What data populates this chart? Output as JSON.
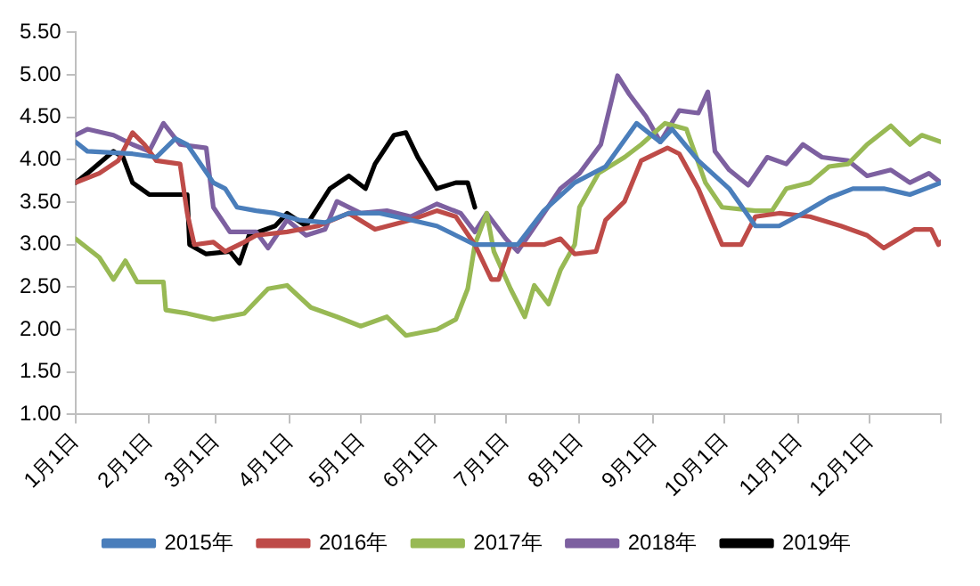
{
  "chart_data": {
    "type": "line",
    "xlim": [
      "--01-01",
      "--12-31"
    ],
    "xticks": [
      {
        "value": "--01-01",
        "label": "1月1日"
      },
      {
        "value": "--02-01",
        "label": "2月1日"
      },
      {
        "value": "--03-01",
        "label": "3月1日"
      },
      {
        "value": "--04-01",
        "label": "4月1日"
      },
      {
        "value": "--05-01",
        "label": "5月1日"
      },
      {
        "value": "--06-01",
        "label": "6月1日"
      },
      {
        "value": "--07-01",
        "label": "7月1日"
      },
      {
        "value": "--08-01",
        "label": "8月1日"
      },
      {
        "value": "--09-01",
        "label": "9月1日"
      },
      {
        "value": "--10-01",
        "label": "10月1日"
      },
      {
        "value": "--11-01",
        "label": "11月1日"
      },
      {
        "value": "--12-01",
        "label": "12月1日"
      },
      {
        "value": "--12-31",
        "label": null
      }
    ],
    "ylim": [
      1,
      5.5
    ],
    "yticks": [
      {
        "value": 1,
        "label": "1.00"
      },
      {
        "value": 1.5,
        "label": "1.50"
      },
      {
        "value": 2,
        "label": "2.00"
      },
      {
        "value": 2.5,
        "label": "2.50"
      },
      {
        "value": 3,
        "label": "3.00"
      },
      {
        "value": 3.5,
        "label": "3.50"
      },
      {
        "value": 4,
        "label": "4.00"
      },
      {
        "value": 4.5,
        "label": "4.50"
      },
      {
        "value": 5,
        "label": "5.00"
      },
      {
        "value": 5.5,
        "label": "5.50"
      }
    ],
    "grid": false,
    "legend": "bottom",
    "marker": "none",
    "line_style": "solid",
    "series": [
      {
        "name": "2015年",
        "color": "#4a7ebb",
        "x": [
          "--01-01",
          "--01-06",
          "--01-25",
          "--02-04",
          "--02-12",
          "--02-17",
          "--02-28",
          "--03-05",
          "--03-10",
          "--03-18",
          "--03-26",
          "--04-05",
          "--04-16",
          "--04-26",
          "--05-09",
          "--05-22",
          "--06-02",
          "--06-10",
          "--06-18",
          "--07-06",
          "--07-17",
          "--07-30",
          "--08-12",
          "--08-25",
          "--09-04",
          "--09-09",
          "--09-20",
          "--10-03",
          "--10-14",
          "--10-24",
          "--11-03",
          "--11-14",
          "--11-24",
          "--12-07",
          "--12-18",
          "--12-31"
        ],
        "values": [
          4.21,
          4.1,
          4.07,
          4.03,
          4.25,
          4.18,
          3.73,
          3.66,
          3.44,
          3.4,
          3.37,
          3.29,
          3.26,
          3.37,
          3.37,
          3.29,
          3.22,
          3.11,
          3.0,
          3.0,
          3.4,
          3.73,
          3.92,
          4.43,
          4.21,
          4.36,
          3.99,
          3.66,
          3.22,
          3.22,
          3.37,
          3.55,
          3.66,
          3.66,
          3.59,
          3.73
        ]
      },
      {
        "name": "2016年",
        "color": "#be4b48",
        "x": [
          "--01-01",
          "--01-11",
          "--01-19",
          "--01-25",
          "--01-30",
          "--02-04",
          "--02-14",
          "--02-17",
          "--02-20",
          "--02-28",
          "--03-05",
          "--03-13",
          "--03-18",
          "--03-31",
          "--04-13",
          "--04-26",
          "--05-07",
          "--05-22",
          "--06-02",
          "--06-10",
          "--06-18",
          "--06-25",
          "--06-28",
          "--07-03",
          "--07-17",
          "--07-24",
          "--07-30",
          "--08-08",
          "--08-12",
          "--08-20",
          "--08-27",
          "--09-07",
          "--09-12",
          "--09-20",
          "--09-30",
          "--10-08",
          "--10-14",
          "--10-24",
          "--11-06",
          "--11-19",
          "--11-30",
          "--12-07",
          "--12-20",
          "--12-27",
          "--12-30",
          "--12-31"
        ],
        "values": [
          3.73,
          3.84,
          3.99,
          4.32,
          4.18,
          3.99,
          3.95,
          3.37,
          3.0,
          3.03,
          2.92,
          3.03,
          3.11,
          3.15,
          3.22,
          3.37,
          3.18,
          3.29,
          3.4,
          3.33,
          3.0,
          2.59,
          2.59,
          3.0,
          3.0,
          3.07,
          2.89,
          2.92,
          3.29,
          3.51,
          3.99,
          4.14,
          4.07,
          3.66,
          3.0,
          3.0,
          3.33,
          3.37,
          3.33,
          3.22,
          3.11,
          2.96,
          3.18,
          3.18,
          3.0,
          3.03
        ]
      },
      {
        "name": "2017年",
        "color": "#98b954",
        "x": [
          "--01-01",
          "--01-11",
          "--01-17",
          "--01-22",
          "--01-27",
          "--02-07",
          "--02-08",
          "--02-17",
          "--02-28",
          "--03-13",
          "--03-23",
          "--03-31",
          "--04-10",
          "--04-21",
          "--05-01",
          "--05-12",
          "--05-20",
          "--06-02",
          "--06-10",
          "--06-15",
          "--06-18",
          "--06-23",
          "--06-26",
          "--07-03",
          "--07-09",
          "--07-13",
          "--07-19",
          "--07-24",
          "--07-30",
          "--08-01",
          "--08-09",
          "--08-20",
          "--08-27",
          "--09-06",
          "--09-15",
          "--09-23",
          "--09-30",
          "--10-14",
          "--10-21",
          "--10-27",
          "--11-06",
          "--11-14",
          "--11-22",
          "--11-30",
          "--12-10",
          "--12-18",
          "--12-23",
          "--12-31"
        ],
        "values": [
          3.07,
          2.85,
          2.59,
          2.81,
          2.56,
          2.56,
          2.23,
          2.19,
          2.12,
          2.19,
          2.48,
          2.52,
          2.26,
          2.15,
          2.04,
          2.15,
          1.93,
          2.0,
          2.12,
          2.48,
          3.0,
          3.37,
          2.92,
          2.48,
          2.15,
          2.52,
          2.3,
          2.7,
          3.0,
          3.44,
          3.84,
          4.03,
          4.18,
          4.43,
          4.36,
          3.73,
          3.44,
          3.4,
          3.4,
          3.66,
          3.73,
          3.92,
          3.95,
          4.18,
          4.4,
          4.18,
          4.29,
          4.21
        ]
      },
      {
        "name": "2018年",
        "color": "#7d60a0",
        "x": [
          "--01-01",
          "--01-06",
          "--01-17",
          "--01-25",
          "--02-01",
          "--02-07",
          "--02-14",
          "--02-25",
          "--02-28",
          "--03-07",
          "--03-18",
          "--03-23",
          "--03-31",
          "--04-08",
          "--04-16",
          "--04-21",
          "--05-01",
          "--05-12",
          "--05-22",
          "--06-02",
          "--06-12",
          "--06-18",
          "--06-23",
          "--07-01",
          "--07-06",
          "--07-17",
          "--07-24",
          "--08-01",
          "--08-10",
          "--08-17",
          "--08-22",
          "--08-29",
          "--09-04",
          "--09-12",
          "--09-20",
          "--09-24",
          "--09-27",
          "--10-03",
          "--10-11",
          "--10-19",
          "--10-27",
          "--11-03",
          "--11-11",
          "--11-22",
          "--11-30",
          "--12-10",
          "--12-18",
          "--12-26",
          "--12-31"
        ],
        "values": [
          4.29,
          4.36,
          4.29,
          4.18,
          4.1,
          4.43,
          4.18,
          4.14,
          3.44,
          3.15,
          3.15,
          2.96,
          3.29,
          3.11,
          3.18,
          3.51,
          3.37,
          3.4,
          3.33,
          3.48,
          3.37,
          3.15,
          3.37,
          3.07,
          2.92,
          3.37,
          3.66,
          3.84,
          4.18,
          4.99,
          4.77,
          4.51,
          4.21,
          4.58,
          4.55,
          4.8,
          4.1,
          3.88,
          3.7,
          4.03,
          3.95,
          4.18,
          4.03,
          3.99,
          3.81,
          3.88,
          3.73,
          3.84,
          3.73
        ]
      },
      {
        "name": "2019年",
        "color": "#000000",
        "x": [
          "--01-01",
          "--01-06",
          "--01-17",
          "--01-21",
          "--01-25",
          "--02-01",
          "--02-17",
          "--02-18",
          "--02-25",
          "--03-07",
          "--03-11",
          "--03-15",
          "--03-26",
          "--03-31",
          "--04-08",
          "--04-13",
          "--04-18",
          "--04-26",
          "--05-03",
          "--05-07",
          "--05-15",
          "--05-20",
          "--05-25",
          "--06-02",
          "--06-10",
          "--06-15",
          "--06-18"
        ],
        "values": [
          3.73,
          3.84,
          4.1,
          4.03,
          3.73,
          3.59,
          3.59,
          3.0,
          2.89,
          2.92,
          2.78,
          3.11,
          3.22,
          3.37,
          3.22,
          3.44,
          3.66,
          3.81,
          3.66,
          3.95,
          4.29,
          4.32,
          4.03,
          3.66,
          3.73,
          3.73,
          3.44
        ]
      }
    ]
  }
}
